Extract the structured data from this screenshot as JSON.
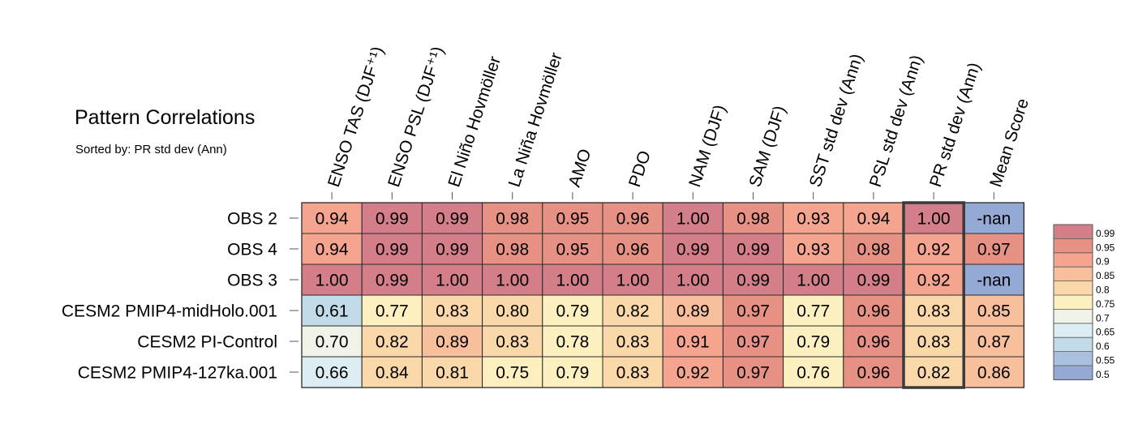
{
  "chart_data": {
    "type": "heatmap",
    "title": "Pattern Correlations",
    "subtitle": "Sorted by: PR std dev (Ann)",
    "columns": [
      "ENSO TAS (DJF⁺¹)",
      "ENSO PSL (DJF⁺¹)",
      "El Niño Hovmöller",
      "La Niña Hovmöller",
      "AMO",
      "PDO",
      "NAM (DJF)",
      "SAM (DJF)",
      "SST std dev (Ann)",
      "PSL std dev (Ann)",
      "PR std dev (Ann)",
      "Mean Score"
    ],
    "rows": [
      "OBS 2",
      "OBS 4",
      "OBS 3",
      "CESM2 PMIP4-midHolo.001",
      "CESM2 PI-Control",
      "CESM2 PMIP4-127ka.001"
    ],
    "values": [
      [
        "0.94",
        "0.99",
        "0.99",
        "0.98",
        "0.95",
        "0.96",
        "1.00",
        "0.98",
        "0.93",
        "0.94",
        "1.00",
        "-nan"
      ],
      [
        "0.94",
        "0.99",
        "0.99",
        "0.98",
        "0.95",
        "0.96",
        "0.99",
        "0.99",
        "0.93",
        "0.98",
        "0.92",
        "0.97"
      ],
      [
        "1.00",
        "0.99",
        "1.00",
        "1.00",
        "1.00",
        "1.00",
        "1.00",
        "0.99",
        "1.00",
        "0.99",
        "0.92",
        "-nan"
      ],
      [
        "0.61",
        "0.77",
        "0.83",
        "0.80",
        "0.79",
        "0.82",
        "0.89",
        "0.97",
        "0.77",
        "0.96",
        "0.83",
        "0.85"
      ],
      [
        "0.70",
        "0.82",
        "0.89",
        "0.83",
        "0.78",
        "0.83",
        "0.91",
        "0.97",
        "0.79",
        "0.96",
        "0.83",
        "0.87"
      ],
      [
        "0.66",
        "0.84",
        "0.81",
        "0.75",
        "0.79",
        "0.83",
        "0.92",
        "0.97",
        "0.76",
        "0.96",
        "0.82",
        "0.86"
      ]
    ],
    "highlighted_column": "PR std dev (Ann)",
    "colorbar": {
      "labels": [
        "0.99",
        "0.95",
        "0.9",
        "0.85",
        "0.8",
        "0.75",
        "0.7",
        "0.65",
        "0.6",
        "0.55",
        "0.5"
      ],
      "colors": [
        "#d37e88",
        "#e79184",
        "#f5a58f",
        "#f8bf9c",
        "#fbd8a9",
        "#fdf0c0",
        "#f1f3e9",
        "#dceef3",
        "#c2dbe9",
        "#a9c0de",
        "#94a9d4"
      ],
      "nan_color": "#94a9d4"
    }
  }
}
